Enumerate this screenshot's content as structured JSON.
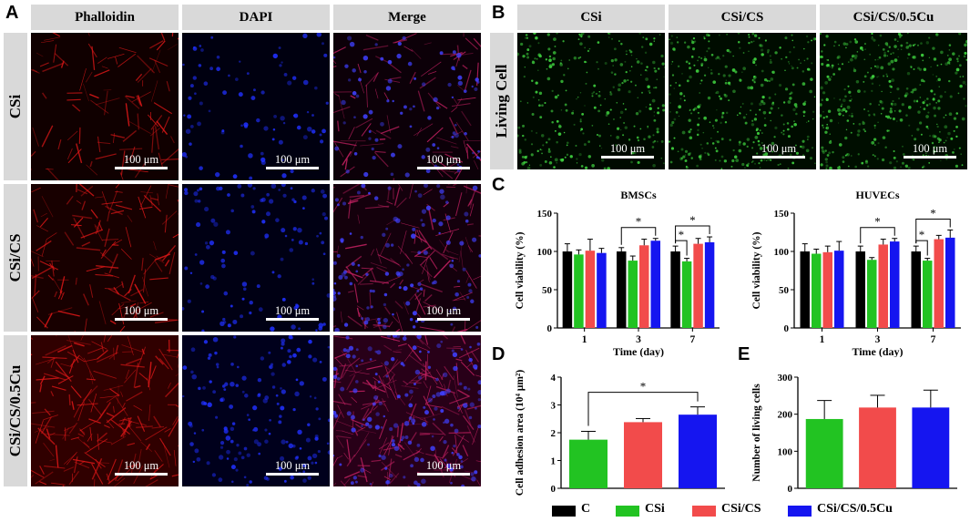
{
  "panels": {
    "A": "A",
    "B": "B",
    "C": "C",
    "D": "D",
    "E": "E"
  },
  "panel_a": {
    "columns": [
      "Phalloidin",
      "DAPI",
      "Merge"
    ],
    "rows": [
      "CSi",
      "CSi/CS",
      "CSi/CS/0.5Cu"
    ],
    "stain_colors": [
      "#e01818",
      "#2030ff",
      "#c02060"
    ]
  },
  "panel_b": {
    "columns": [
      "CSi",
      "CSi/CS",
      "CSi/CS/0.5Cu"
    ],
    "row_label": "Living Cell",
    "stain_color": "#3fd23f"
  },
  "scale_bar_label": "100 μm",
  "legend": [
    {
      "label": "C",
      "color": "#000000"
    },
    {
      "label": "CSi",
      "color": "#22c322"
    },
    {
      "label": "CSi/CS",
      "color": "#f24b4b"
    },
    {
      "label": "CSi/CS/0.5Cu",
      "color": "#1515f0"
    }
  ],
  "chart_data": [
    {
      "type": "bar",
      "title": "BMSCs",
      "xlabel": "Time (day)",
      "ylabel": "Cell viability (%)",
      "ylim": [
        0,
        150
      ],
      "yticks": [
        0,
        50,
        100,
        150
      ],
      "categories": [
        "1",
        "3",
        "7"
      ],
      "series": [
        {
          "name": "C",
          "values": [
            100,
            100,
            100
          ],
          "errors": [
            10,
            5,
            7
          ]
        },
        {
          "name": "CSi",
          "values": [
            96,
            88,
            87
          ],
          "errors": [
            6,
            6,
            4
          ]
        },
        {
          "name": "CSi/CS",
          "values": [
            101,
            108,
            110
          ],
          "errors": [
            15,
            8,
            7
          ]
        },
        {
          "name": "CSi/CS/0.5Cu",
          "values": [
            98,
            114,
            112
          ],
          "errors": [
            6,
            3,
            7
          ]
        }
      ],
      "significance": [
        {
          "label": "*",
          "category": "3",
          "from": "C",
          "to": "CSi/CS/0.5Cu"
        },
        {
          "label": "*",
          "category": "7",
          "from": "C",
          "to": "CSi"
        },
        {
          "label": "*",
          "category": "7",
          "from": "C",
          "to": "CSi/CS/0.5Cu"
        }
      ]
    },
    {
      "type": "bar",
      "title": "HUVECs",
      "xlabel": "Time (day)",
      "ylabel": "Cell viability (%)",
      "ylim": [
        0,
        150
      ],
      "yticks": [
        0,
        50,
        100,
        150
      ],
      "categories": [
        "1",
        "3",
        "7"
      ],
      "series": [
        {
          "name": "C",
          "values": [
            100,
            100,
            100
          ],
          "errors": [
            10,
            7,
            7
          ]
        },
        {
          "name": "CSi",
          "values": [
            97,
            89,
            88
          ],
          "errors": [
            6,
            3,
            3
          ]
        },
        {
          "name": "CSi/CS",
          "values": [
            99,
            109,
            116
          ],
          "errors": [
            8,
            7,
            5
          ]
        },
        {
          "name": "CSi/CS/0.5Cu",
          "values": [
            101,
            113,
            118
          ],
          "errors": [
            12,
            4,
            10
          ]
        }
      ],
      "significance": [
        {
          "label": "*",
          "category": "3",
          "from": "C",
          "to": "CSi/CS/0.5Cu"
        },
        {
          "label": "*",
          "category": "7",
          "from": "C",
          "to": "CSi"
        },
        {
          "label": "*",
          "category": "7",
          "from": "C",
          "to": "CSi/CS/0.5Cu"
        }
      ]
    },
    {
      "type": "bar",
      "title": "",
      "xlabel": "",
      "ylabel": "Cell adhesion area (10⁴ μm²)",
      "ylim": [
        0,
        4
      ],
      "yticks": [
        0,
        1,
        2,
        3,
        4
      ],
      "categories": [
        "CSi",
        "CSi/CS",
        "CSi/CS/0.5Cu"
      ],
      "values": [
        1.75,
        2.38,
        2.65
      ],
      "errors": [
        0.3,
        0.13,
        0.28
      ],
      "colors": [
        "#22c322",
        "#f24b4b",
        "#1515f0"
      ],
      "significance": [
        {
          "label": "*",
          "from": "CSi",
          "to": "CSi/CS/0.5Cu"
        }
      ]
    },
    {
      "type": "bar",
      "title": "",
      "xlabel": "",
      "ylabel": "Number of living cells",
      "ylim": [
        0,
        300
      ],
      "yticks": [
        0,
        100,
        200,
        300
      ],
      "categories": [
        "CSi",
        "CSi/CS",
        "CSi/CS/0.5Cu"
      ],
      "values": [
        187,
        218,
        218
      ],
      "errors": [
        50,
        33,
        47
      ],
      "colors": [
        "#22c322",
        "#f24b4b",
        "#1515f0"
      ],
      "significance": []
    }
  ]
}
